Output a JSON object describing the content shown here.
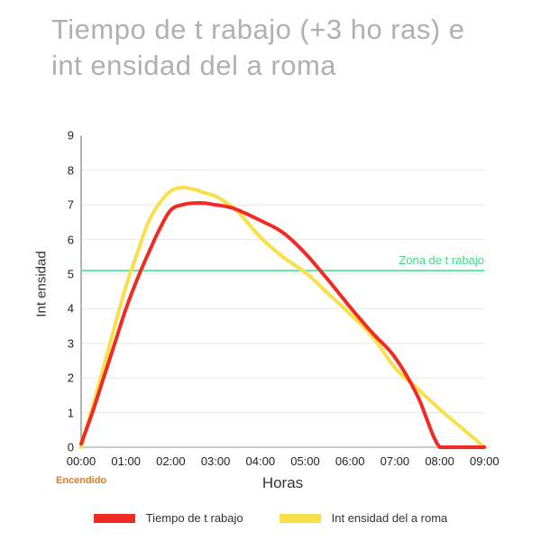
{
  "chart": {
    "title_lines": [
      "Tiempo de t rabajo (+3 ho ras) e",
      "int ensidad del a roma"
    ]
  },
  "chart_data": {
    "type": "line",
    "title": "Tiempo de t rabajo (+3 ho ras) e int ensidad del a roma",
    "xlabel": "Horas",
    "ylabel": "Int ensidad",
    "x_tick_labels": [
      "00:00",
      "01:00",
      "02:00",
      "03:00",
      "04:00",
      "05:00",
      "06:00",
      "07:00",
      "08:00",
      "09:00"
    ],
    "y_ticks": [
      0,
      1,
      2,
      3,
      4,
      5,
      6,
      7,
      8,
      9
    ],
    "xlim": [
      0,
      9
    ],
    "ylim": [
      0,
      9
    ],
    "grid": "horizontal-only",
    "legend_position": "bottom-center",
    "series": [
      {
        "name": "Tiempo de t rabajo",
        "color": "#F12B24",
        "x": [
          0,
          0.25,
          0.5,
          0.75,
          1,
          1.25,
          1.5,
          1.75,
          2,
          2.25,
          2.5,
          2.75,
          3,
          3.25,
          3.5,
          4,
          4.5,
          5,
          5.5,
          6,
          6.5,
          7,
          7.5,
          8,
          8.5,
          9
        ],
        "y": [
          0.1,
          1.0,
          2.0,
          3.0,
          4.0,
          4.85,
          5.6,
          6.3,
          6.85,
          7.0,
          7.05,
          7.05,
          7.0,
          6.95,
          6.85,
          6.55,
          6.2,
          5.6,
          4.85,
          4.05,
          3.3,
          2.6,
          1.5,
          0,
          0,
          0
        ]
      },
      {
        "name": "Int ensidad del a roma",
        "color": "#F9E04A",
        "x": [
          0,
          0.25,
          0.5,
          0.75,
          1,
          1.25,
          1.5,
          1.75,
          2,
          2.25,
          2.5,
          2.75,
          3,
          3.25,
          3.5,
          4,
          4.5,
          5,
          5.5,
          6,
          6.5,
          7,
          7.5,
          8,
          8.5,
          9
        ],
        "y": [
          0,
          1.15,
          2.3,
          3.5,
          4.65,
          5.6,
          6.5,
          7.05,
          7.4,
          7.5,
          7.45,
          7.35,
          7.25,
          7.05,
          6.8,
          6.07,
          5.5,
          5.05,
          4.45,
          3.85,
          3.2,
          2.3,
          1.7,
          1.1,
          0.55,
          0
        ]
      }
    ],
    "reference_line": {
      "label": "Zona de t rabajo",
      "value": 5.1,
      "color": "#62E5A3",
      "label_color": "#39DC86"
    },
    "power_annotation": {
      "text": "Encendido",
      "color": "#E07B28"
    }
  },
  "colors": {
    "background": "#FFFFFF",
    "title": "#B0B0B0",
    "axis_text": "#222222",
    "axis_title_text": "#333333",
    "gridline": "#E8E8E8",
    "y_axis_line": "#B3B3B3",
    "x_axis_line": "#CCCCCC"
  }
}
